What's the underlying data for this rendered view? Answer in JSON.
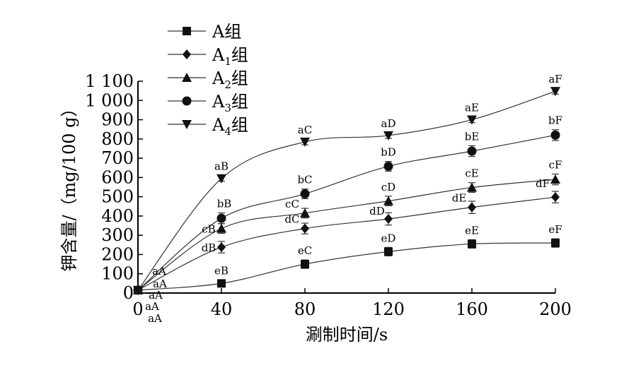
{
  "chart_data": {
    "type": "line",
    "title": "",
    "xlabel": "涮制时间/s",
    "ylabel": "钾含量/（mg/100 g）",
    "x": [
      0,
      40,
      80,
      120,
      160,
      200
    ],
    "xlim": [
      0,
      200
    ],
    "ylim": [
      0,
      1100
    ],
    "x_ticks": [
      {
        "value": 0,
        "label": "0"
      },
      {
        "value": 40,
        "label": "40"
      },
      {
        "value": 80,
        "label": "80"
      },
      {
        "value": 120,
        "label": "120"
      },
      {
        "value": 160,
        "label": "160"
      },
      {
        "value": 200,
        "label": "200"
      }
    ],
    "y_ticks": [
      {
        "value": 0,
        "label": "0"
      },
      {
        "value": 100,
        "label": "100"
      },
      {
        "value": 200,
        "label": "200"
      },
      {
        "value": 300,
        "label": "300"
      },
      {
        "value": 400,
        "label": "400"
      },
      {
        "value": 500,
        "label": "500"
      },
      {
        "value": 600,
        "label": "600"
      },
      {
        "value": 700,
        "label": "700"
      },
      {
        "value": 800,
        "label": "800"
      },
      {
        "value": 900,
        "label": "900"
      },
      {
        "value": 1000,
        "label": "1 000"
      },
      {
        "value": 1100,
        "label": "1 100"
      }
    ],
    "grid": false,
    "legend_position": "top-left",
    "series": [
      {
        "name": "A组",
        "legend_main": "A",
        "legend_sub": "",
        "legend_suffix": "组",
        "marker": "square",
        "values": [
          15,
          50,
          150,
          215,
          255,
          260
        ],
        "errors": [
          8,
          18,
          22,
          22,
          22,
          22
        ],
        "point_labels": [
          "aA",
          "eB",
          "eC",
          "eD",
          "eE",
          "eF"
        ]
      },
      {
        "name": "A1组",
        "legend_main": "A",
        "legend_sub": "1",
        "legend_suffix": "组",
        "marker": "diamond",
        "values": [
          15,
          238,
          335,
          385,
          445,
          498
        ],
        "errors": [
          8,
          30,
          28,
          32,
          32,
          30
        ],
        "point_labels": [
          "aA",
          "dB",
          "dC",
          "dD",
          "dE",
          "dF"
        ]
      },
      {
        "name": "A2组",
        "legend_main": "A",
        "legend_sub": "2",
        "legend_suffix": "组",
        "marker": "triangle-up",
        "values": [
          15,
          335,
          415,
          478,
          548,
          590
        ],
        "errors": [
          8,
          25,
          25,
          25,
          25,
          28
        ],
        "point_labels": [
          "aA",
          "cB",
          "cC",
          "cD",
          "cE",
          "cF"
        ]
      },
      {
        "name": "A3组",
        "legend_main": "A",
        "legend_sub": "3",
        "legend_suffix": "组",
        "marker": "circle",
        "values": [
          15,
          388,
          515,
          658,
          737,
          820
        ],
        "errors": [
          8,
          28,
          25,
          25,
          28,
          28
        ],
        "point_labels": [
          "aA",
          "bB",
          "bC",
          "bD",
          "bE",
          "bF"
        ]
      },
      {
        "name": "A4组",
        "legend_main": "A",
        "legend_sub": "4",
        "legend_suffix": "组",
        "marker": "triangle-down",
        "values": [
          15,
          595,
          785,
          818,
          900,
          1048
        ],
        "errors": [
          8,
          15,
          15,
          15,
          15,
          15
        ],
        "point_labels": [
          "aA",
          "aB",
          "aC",
          "aD",
          "aE",
          "aF"
        ]
      }
    ],
    "colors": {
      "line": "#333333",
      "marker": "#111111",
      "axis": "#000000"
    }
  }
}
